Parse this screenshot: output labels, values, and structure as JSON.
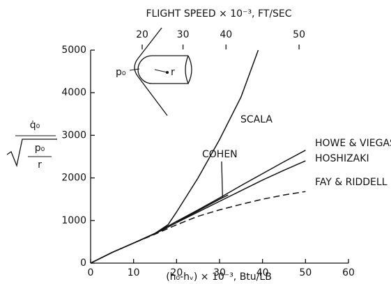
{
  "chart_data": {
    "type": "line",
    "x_label": "(h₀-hᵥ) × 10⁻³, Btu/LB",
    "x2_label": "FLIGHT SPEED × 10⁻³, FT/SEC",
    "y_label": {
      "numerator": "q̇₀",
      "radicand_top": "p₀",
      "radicand_bottom": "r"
    },
    "inset_labels": [
      "p₀",
      "r"
    ],
    "xlim": [
      0,
      60
    ],
    "xticks": [
      0,
      10,
      20,
      30,
      40,
      50,
      60
    ],
    "x2ticks": [
      {
        "value": 12,
        "label": "20"
      },
      {
        "value": 21.5,
        "label": "30"
      },
      {
        "value": 31.5,
        "label": "40"
      },
      {
        "value": 48.5,
        "label": "50"
      }
    ],
    "ylim": [
      0,
      5000
    ],
    "yticks": [
      0,
      1000,
      2000,
      3000,
      4000,
      5000
    ],
    "series": [
      {
        "name": "SCALA",
        "color": "#111",
        "dash": false,
        "x": [
          0,
          5,
          10,
          15,
          18,
          20,
          25,
          30,
          35,
          39
        ],
        "values": [
          0,
          250,
          470,
          700,
          900,
          1200,
          2000,
          2900,
          3900,
          5000
        ]
      },
      {
        "name": "COHEN",
        "color": "#111",
        "dash": false,
        "x": [
          20,
          25,
          30,
          32
        ],
        "values": [
          960,
          1230,
          1500,
          1600
        ]
      },
      {
        "name": "HOWE & VIEGAS",
        "color": "#111",
        "dash": false,
        "x": [
          0,
          5,
          10,
          15,
          20,
          25,
          30,
          35,
          40,
          45,
          50
        ],
        "values": [
          0,
          250,
          470,
          700,
          980,
          1250,
          1530,
          1820,
          2100,
          2380,
          2650
        ]
      },
      {
        "name": "HOSHIZAKI",
        "color": "#111",
        "dash": false,
        "x": [
          0,
          5,
          10,
          15,
          20,
          25,
          30,
          35,
          40,
          45,
          50
        ],
        "values": [
          0,
          250,
          470,
          690,
          950,
          1200,
          1450,
          1700,
          1950,
          2180,
          2400
        ]
      },
      {
        "name": "FAY & RIDDELL",
        "color": "#111",
        "dash": true,
        "x": [
          0,
          5,
          10,
          15,
          20,
          25,
          30,
          35,
          40,
          45,
          50
        ],
        "values": [
          0,
          250,
          470,
          680,
          900,
          1100,
          1250,
          1380,
          1500,
          1600,
          1680
        ]
      }
    ]
  }
}
